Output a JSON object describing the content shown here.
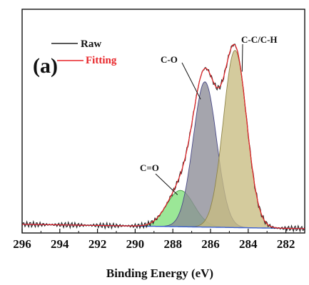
{
  "chart_data": {
    "type": "line",
    "panel_label": "(a)",
    "xlabel": "Binding Energy (eV)",
    "x_reversed": true,
    "xlim": [
      296,
      281
    ],
    "ylim": [
      -0.2,
      7.5
    ],
    "xticks": [
      296,
      294,
      292,
      290,
      288,
      286,
      284,
      282
    ],
    "yticks_shown": false,
    "grid": false,
    "legend": {
      "placement": "top-left",
      "entries": [
        {
          "name": "Raw",
          "color": "#222222"
        },
        {
          "name": "Fitting",
          "color": "#e8262a"
        }
      ]
    },
    "baseline": {
      "x": [
        296,
        281
      ],
      "y": [
        0.1,
        -0.05
      ],
      "color": "#3a5fd0"
    },
    "peaks": [
      {
        "label": "C=O",
        "center": 287.6,
        "height": 1.25,
        "sigma": 0.72,
        "fill": "#7fe07a",
        "edge": "#4a9a48"
      },
      {
        "label": "C-O",
        "center": 286.3,
        "height": 5.0,
        "sigma": 0.62,
        "fill": "#8c8c96",
        "edge": "#4a4a88"
      },
      {
        "label": "C-C/C-H",
        "center": 284.7,
        "height": 6.1,
        "sigma": 0.62,
        "fill": "#c8bd82",
        "edge": "#8e8448"
      }
    ],
    "annotations": [
      {
        "text": "C=O",
        "points_to": "C=O"
      },
      {
        "text": "C-O",
        "points_to": "C-O"
      },
      {
        "text": "C-C/C-H",
        "points_to": "C-C/C-H"
      }
    ]
  }
}
